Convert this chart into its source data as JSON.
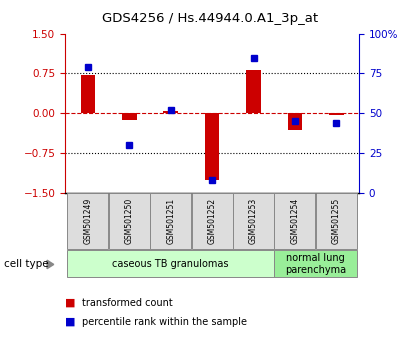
{
  "title": "GDS4256 / Hs.44944.0.A1_3p_at",
  "samples": [
    "GSM501249",
    "GSM501250",
    "GSM501251",
    "GSM501252",
    "GSM501253",
    "GSM501254",
    "GSM501255"
  ],
  "transformed_count": [
    0.72,
    -0.13,
    0.05,
    -1.25,
    0.82,
    -0.32,
    -0.04
  ],
  "percentile_rank": [
    79,
    30,
    52,
    8,
    85,
    45,
    44
  ],
  "ylim_left": [
    -1.5,
    1.5
  ],
  "ylim_right": [
    0,
    100
  ],
  "yticks_left": [
    -1.5,
    -0.75,
    0,
    0.75,
    1.5
  ],
  "yticks_right": [
    0,
    25,
    50,
    75,
    100
  ],
  "ytick_labels_right": [
    "0",
    "25",
    "50",
    "75",
    "100%"
  ],
  "hlines_dotted": [
    0.75,
    -0.75
  ],
  "hline_dashed": 0,
  "bar_color": "#cc0000",
  "dot_color": "#0000cc",
  "zero_line_color": "#cc0000",
  "groups": [
    {
      "label": "caseous TB granulomas",
      "start": 0,
      "end": 4,
      "color": "#ccffcc"
    },
    {
      "label": "normal lung\nparenchyma",
      "start": 5,
      "end": 6,
      "color": "#99ee99"
    }
  ],
  "cell_type_label": "cell type",
  "legend_items": [
    {
      "label": "transformed count",
      "color": "#cc0000"
    },
    {
      "label": "percentile rank within the sample",
      "color": "#0000cc"
    }
  ],
  "background_color": "#ffffff",
  "bar_width": 0.35
}
